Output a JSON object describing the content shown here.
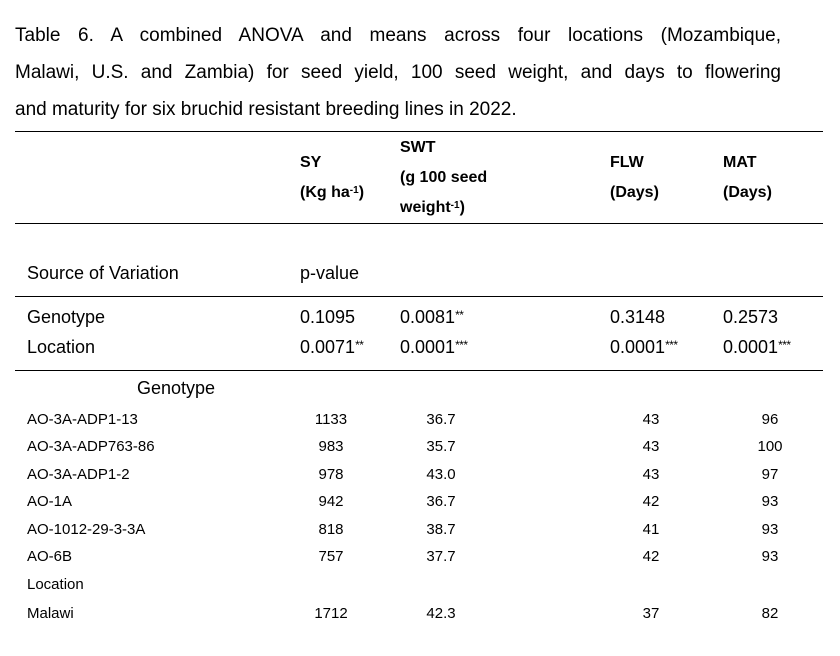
{
  "page": {
    "background_color": "#ffffff",
    "text_color": "#000000",
    "rule_color": "#000000"
  },
  "caption": {
    "lines": [
      "Table 6. A combined ANOVA and means across four locations (Mozambique,",
      "Malawi, U.S. and Zambia) for seed yield, 100 seed weight, and days to flowering",
      "and maturity for six bruchid resistant breeding lines in 2022."
    ]
  },
  "table": {
    "header": {
      "sy": {
        "abbr": "SY",
        "unit_pre": "(Kg ha",
        "unit_sup": "-1",
        "unit_post": ")"
      },
      "swt": {
        "abbr": "SWT",
        "unit_line1": "(g 100 seed",
        "unit_pre": "weight",
        "unit_sup": "-1",
        "unit_post": ")"
      },
      "flw": {
        "abbr": "FLW",
        "unit": "(Days)"
      },
      "mat": {
        "abbr": "MAT",
        "unit": "(Days)"
      }
    },
    "sov": {
      "label": "Source of Variation",
      "value_label": "p-value"
    },
    "anova_rows": [
      {
        "label": "Genotype",
        "sy": "0.1095",
        "sy_stars": "",
        "swt": "0.0081",
        "swt_stars": "**",
        "flw": "0.3148",
        "flw_stars": "",
        "mat": "0.2573",
        "mat_stars": ""
      },
      {
        "label": "Location",
        "sy": "0.0071",
        "sy_stars": "**",
        "swt": "0.0001",
        "swt_stars": "***",
        "flw": "0.0001",
        "flw_stars": "***",
        "mat": "0.0001",
        "mat_stars": "***"
      }
    ],
    "genotype_section": {
      "label": "Genotype"
    },
    "genotype_rows": [
      {
        "label": "AO-3A-ADP1-13",
        "sy": "1133",
        "swt": "36.7",
        "flw": "43",
        "mat": "96"
      },
      {
        "label": "AO-3A-ADP763-86",
        "sy": "983",
        "swt": "35.7",
        "flw": "43",
        "mat": "100"
      },
      {
        "label": "AO-3A-ADP1-2",
        "sy": "978",
        "swt": "43.0",
        "flw": "43",
        "mat": "97"
      },
      {
        "label": "AO-1A",
        "sy": "942",
        "swt": "36.7",
        "flw": "42",
        "mat": "93"
      },
      {
        "label": "AO-1012-29-3-3A",
        "sy": "818",
        "swt": "38.7",
        "flw": "41",
        "mat": "93"
      },
      {
        "label": "AO-6B",
        "sy": "757",
        "swt": "37.7",
        "flw": "42",
        "mat": "93"
      }
    ],
    "location_section": {
      "label": "Location"
    },
    "location_rows": [
      {
        "label": "Malawi",
        "sy": "1712",
        "swt": "42.3",
        "flw": "37",
        "mat": "82"
      }
    ]
  }
}
